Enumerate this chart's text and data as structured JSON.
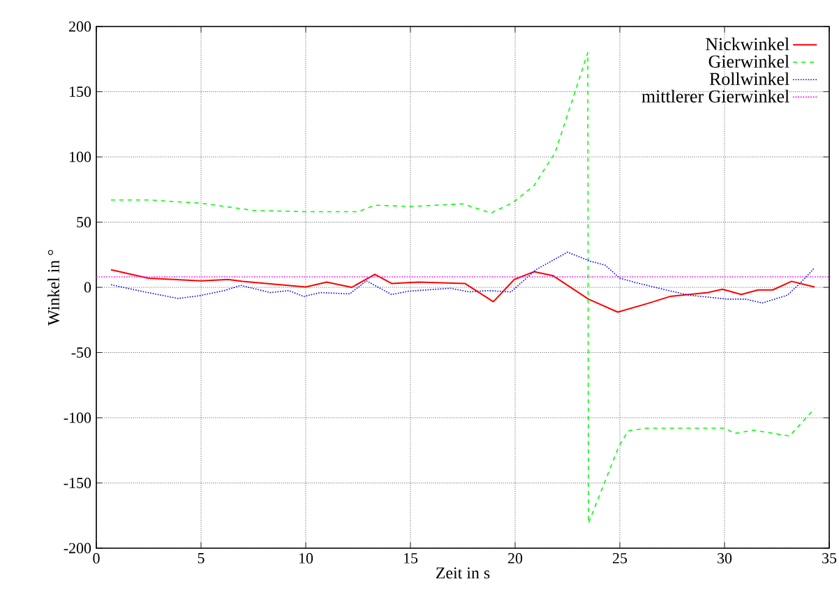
{
  "chart_data": {
    "type": "line",
    "xlabel": "Zeit in s",
    "ylabel": "Winkel in °",
    "xlim": [
      0,
      35
    ],
    "ylim": [
      -200,
      200
    ],
    "xticks": [
      0,
      5,
      10,
      15,
      20,
      25,
      30,
      35
    ],
    "yticks": [
      -200,
      -150,
      -100,
      -50,
      0,
      50,
      100,
      150,
      200
    ],
    "grid": true,
    "legend": "top right",
    "marker": "none",
    "series": [
      {
        "name": "Nickwinkel",
        "color": "#ff0000",
        "line_style": "solid",
        "x": [
          0.7,
          2.5,
          5,
          6.3,
          7,
          10,
          11,
          12.2,
          13.3,
          14.1,
          15.4,
          17.6,
          18.96,
          19.96,
          20.9,
          21.8,
          23.5,
          24.9,
          26.3,
          27.4,
          29.2,
          29.9,
          30.8,
          31.6,
          32.3,
          33.2,
          34.3
        ],
        "values": [
          13.5,
          7,
          5,
          6,
          4.5,
          0.3,
          4,
          0,
          10,
          3,
          4,
          3,
          -11,
          6,
          12,
          9,
          -9,
          -19,
          -12.5,
          -7,
          -4,
          -1.5,
          -5.5,
          -2,
          -2,
          4.6,
          0.3
        ]
      },
      {
        "name": "Gierwinkel",
        "color": "#00ff00",
        "line_style": "dashed",
        "x": [
          0.7,
          2.5,
          5,
          7.5,
          10,
          12.5,
          13.3,
          15,
          17.5,
          18.85,
          19.9,
          20.9,
          21.9,
          22.7,
          23.47,
          23.5,
          24.95,
          25.4,
          26.3,
          30,
          30.5,
          31.4,
          33.1,
          34.3
        ],
        "values": [
          67,
          67,
          64.5,
          59,
          58,
          58,
          63,
          62,
          64,
          57,
          65,
          78,
          103,
          142,
          180,
          -181,
          -122,
          -110,
          -108,
          -108,
          -112,
          -109.5,
          -114,
          -93
        ]
      },
      {
        "name": "Rollwinkel",
        "color": "#0000ff",
        "line_style": "dotted",
        "x": [
          0.7,
          2.3,
          3.9,
          4.9,
          6.1,
          6.9,
          8.3,
          9.2,
          9.9,
          10.7,
          12.1,
          12.9,
          14.1,
          14.9,
          16.9,
          17.8,
          18.7,
          19.8,
          21,
          22.5,
          23.6,
          24.3,
          25,
          25.8,
          27.2,
          28.3,
          30.1,
          31,
          31.8,
          33,
          33.6,
          34.3
        ],
        "values": [
          2,
          -3.5,
          -8.5,
          -6.5,
          -2.5,
          1.5,
          -4,
          -2.5,
          -7,
          -4,
          -5,
          5,
          -5.5,
          -3,
          -0.7,
          -3.5,
          -2.5,
          -3.5,
          13.6,
          27,
          20,
          17,
          7,
          3.5,
          -2,
          -6,
          -9,
          -9,
          -12,
          -6,
          3,
          15
        ]
      },
      {
        "name": "mittlerer Gierwinkel",
        "color": "#ff00ff",
        "line_style": "dotted",
        "x": [
          0,
          35
        ],
        "values": [
          8,
          8
        ]
      }
    ]
  }
}
